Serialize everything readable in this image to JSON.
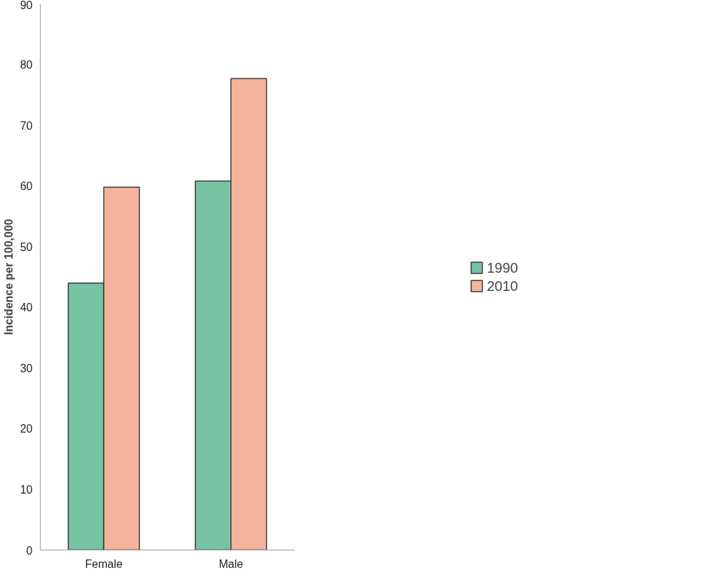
{
  "chart_data": {
    "type": "bar",
    "ylabel": "Incidence per 100,000",
    "categories": [
      "Female",
      "Male"
    ],
    "series": [
      {
        "name": "1990",
        "color": "#78c2a4",
        "values": [
          44,
          60.8
        ]
      },
      {
        "name": "2010",
        "color": "#f4b49c",
        "values": [
          59.8,
          77.7
        ]
      }
    ],
    "ylim": [
      0,
      90
    ],
    "yticks": [
      0,
      10,
      20,
      30,
      40,
      50,
      60,
      70,
      80,
      90
    ],
    "grid": false,
    "legend": "right"
  }
}
